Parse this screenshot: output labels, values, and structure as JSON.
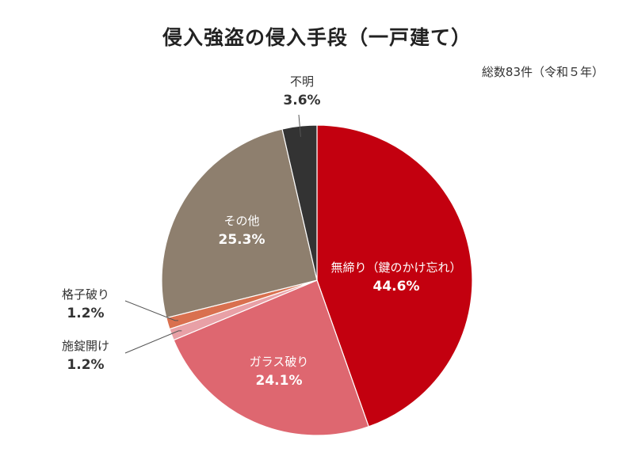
{
  "chart_data": {
    "type": "pie",
    "title": "侵入強盗の侵入手段（一戸建て）",
    "subtitle": "総数83件（令和５年）",
    "slices": [
      {
        "label": "無締り（鍵のかけ忘れ）",
        "value": 44.6,
        "value_label": "44.6%",
        "color": "#c3000f"
      },
      {
        "label": "ガラス破り",
        "value": 24.1,
        "value_label": "24.1%",
        "color": "#de6770"
      },
      {
        "label": "施錠開け",
        "value": 1.2,
        "value_label": "1.2%",
        "color": "#e8a0a6"
      },
      {
        "label": "格子破り",
        "value": 1.2,
        "value_label": "1.2%",
        "color": "#d9704f"
      },
      {
        "label": "その他",
        "value": 25.3,
        "value_label": "25.3%",
        "color": "#8e7f6e"
      },
      {
        "label": "不明",
        "value": 3.6,
        "value_label": "3.6%",
        "color": "#333333"
      }
    ],
    "start": "top",
    "direction": "clockwise"
  }
}
